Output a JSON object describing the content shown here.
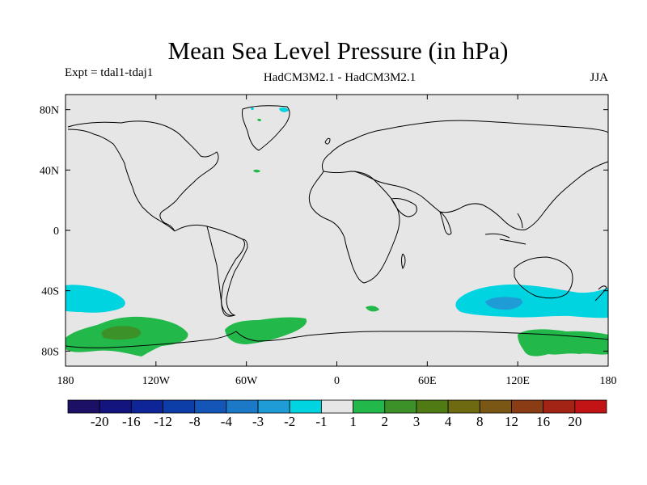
{
  "title": "Mean Sea Level Pressure (in hPa)",
  "experiment": "Expt = tdal1-tdaj1",
  "models": "HadCM3M2.1 - HadCM3M2.1",
  "season": "JJA",
  "map": {
    "projection": "cylindrical equidistant",
    "lon_range": [
      -180,
      180
    ],
    "lat_range": [
      -90,
      90
    ],
    "background_color": "#e6e6e6",
    "x_ticks": [
      {
        "lon": -180,
        "label": "180"
      },
      {
        "lon": -120,
        "label": "120W"
      },
      {
        "lon": -60,
        "label": "60W"
      },
      {
        "lon": 0,
        "label": "0"
      },
      {
        "lon": 60,
        "label": "60E"
      },
      {
        "lon": 120,
        "label": "120E"
      },
      {
        "lon": 180,
        "label": "180"
      }
    ],
    "y_ticks": [
      {
        "lat": 80,
        "label": "80N"
      },
      {
        "lat": 40,
        "label": "40N"
      },
      {
        "lat": 0,
        "label": "0"
      },
      {
        "lat": -40,
        "label": "40S"
      },
      {
        "lat": -80,
        "label": "80S"
      }
    ]
  },
  "colorbar": {
    "colors": [
      "#1c0f66",
      "#14147f",
      "#0d2596",
      "#0d3ea8",
      "#1456b8",
      "#1c79c7",
      "#1f9bd6",
      "#00d4e0",
      "#e6e6e6",
      "#22b84a",
      "#3d9129",
      "#4f7a14",
      "#6e6a12",
      "#7a5714",
      "#8a3d14",
      "#a32314",
      "#c21414"
    ],
    "labels": [
      "-20",
      "-16",
      "-12",
      "-8",
      "-4",
      "-3",
      "-2",
      "-1",
      "1",
      "2",
      "3",
      "4",
      "8",
      "12",
      "16",
      "20"
    ]
  }
}
